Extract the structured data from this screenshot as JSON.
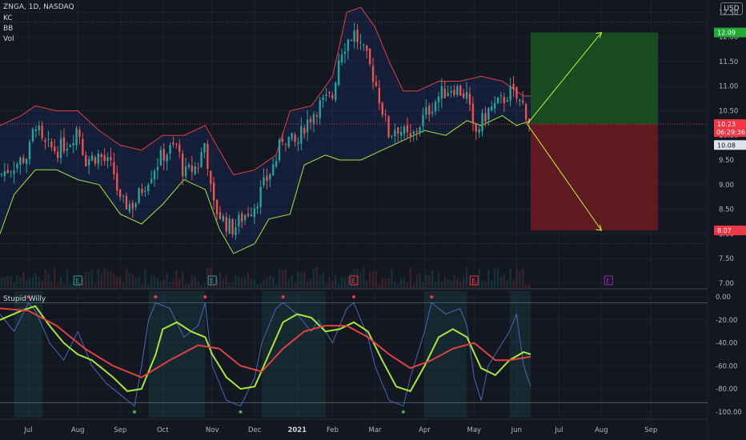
{
  "header": {
    "symbol_line": "ZNGA, 1D, NASDAQ",
    "indicators": [
      "KC",
      "BB",
      "Vol"
    ],
    "currency_button": "USD"
  },
  "oscillator": {
    "title": "Stupid Willy"
  },
  "colors": {
    "background": "#131722",
    "up_candle": "#26a69a",
    "down_candle": "#ef5350",
    "bb_upper": "#e0413f",
    "bb_lower": "#a8e63a",
    "target_zone": "#1b5e20",
    "stop_zone": "#7a1c23",
    "price_label": "#f23645",
    "target_label": "#22ab35"
  },
  "chart_data": [
    {
      "type": "candlestick",
      "symbol": "ZNGA",
      "interval": "1D",
      "exchange": "NASDAQ",
      "ylim": [
        6.9,
        12.75
      ],
      "y_ticks": [
        "12.50",
        "12.00",
        "11.50",
        "11.00",
        "10.50",
        "10.00",
        "9.50",
        "9.00",
        "8.50",
        "8.00",
        "7.50",
        "7.00"
      ],
      "x_ticks": [
        "Jul",
        "Aug",
        "Sep",
        "Oct",
        "Nov",
        "Dec",
        "2021",
        "Feb",
        "Mar",
        "Apr",
        "May",
        "Jun",
        "Jul",
        "Aug",
        "Sep"
      ],
      "x_tick_pos": [
        0.04,
        0.11,
        0.17,
        0.23,
        0.3,
        0.36,
        0.42,
        0.47,
        0.53,
        0.6,
        0.67,
        0.73,
        0.79,
        0.85,
        0.92
      ],
      "close_path": [
        [
          0.0,
          9.2
        ],
        [
          0.02,
          9.4
        ],
        [
          0.04,
          9.6
        ],
        [
          0.05,
          10.3
        ],
        [
          0.06,
          9.8
        ],
        [
          0.08,
          9.7
        ],
        [
          0.1,
          9.9
        ],
        [
          0.11,
          10.2
        ],
        [
          0.12,
          9.5
        ],
        [
          0.14,
          9.6
        ],
        [
          0.16,
          9.3
        ],
        [
          0.17,
          8.6
        ],
        [
          0.19,
          8.6
        ],
        [
          0.2,
          8.9
        ],
        [
          0.22,
          9.4
        ],
        [
          0.23,
          9.6
        ],
        [
          0.25,
          9.8
        ],
        [
          0.26,
          9.2
        ],
        [
          0.28,
          9.4
        ],
        [
          0.29,
          9.9
        ],
        [
          0.3,
          8.6
        ],
        [
          0.32,
          8.2
        ],
        [
          0.33,
          8.1
        ],
        [
          0.34,
          8.3
        ],
        [
          0.36,
          8.6
        ],
        [
          0.37,
          8.9
        ],
        [
          0.39,
          9.5
        ],
        [
          0.4,
          10.0
        ],
        [
          0.42,
          9.8
        ],
        [
          0.43,
          10.2
        ],
        [
          0.45,
          10.6
        ],
        [
          0.47,
          10.8
        ],
        [
          0.48,
          11.7
        ],
        [
          0.5,
          12.1
        ],
        [
          0.52,
          11.5
        ],
        [
          0.53,
          11.1
        ],
        [
          0.55,
          10.0
        ],
        [
          0.56,
          10.2
        ],
        [
          0.58,
          9.9
        ],
        [
          0.6,
          10.4
        ],
        [
          0.62,
          10.8
        ],
        [
          0.64,
          11.0
        ],
        [
          0.66,
          10.8
        ],
        [
          0.67,
          10.0
        ],
        [
          0.69,
          10.5
        ],
        [
          0.71,
          10.7
        ],
        [
          0.72,
          10.9
        ],
        [
          0.74,
          10.6
        ],
        [
          0.75,
          10.23
        ]
      ],
      "bb_upper": [
        [
          0.0,
          10.2
        ],
        [
          0.03,
          10.4
        ],
        [
          0.05,
          10.6
        ],
        [
          0.08,
          10.5
        ],
        [
          0.11,
          10.5
        ],
        [
          0.14,
          10.1
        ],
        [
          0.17,
          9.8
        ],
        [
          0.2,
          9.7
        ],
        [
          0.23,
          10.0
        ],
        [
          0.26,
          10.0
        ],
        [
          0.29,
          10.2
        ],
        [
          0.31,
          9.7
        ],
        [
          0.33,
          9.2
        ],
        [
          0.36,
          9.3
        ],
        [
          0.39,
          9.6
        ],
        [
          0.41,
          10.5
        ],
        [
          0.44,
          10.6
        ],
        [
          0.47,
          11.2
        ],
        [
          0.49,
          12.5
        ],
        [
          0.51,
          12.6
        ],
        [
          0.53,
          12.2
        ],
        [
          0.55,
          11.5
        ],
        [
          0.57,
          10.9
        ],
        [
          0.59,
          10.9
        ],
        [
          0.62,
          11.1
        ],
        [
          0.65,
          11.1
        ],
        [
          0.68,
          11.2
        ],
        [
          0.71,
          11.1
        ],
        [
          0.74,
          10.8
        ],
        [
          0.75,
          10.8
        ]
      ],
      "bb_lower": [
        [
          0.0,
          8.0
        ],
        [
          0.02,
          8.8
        ],
        [
          0.05,
          9.3
        ],
        [
          0.08,
          9.3
        ],
        [
          0.11,
          9.1
        ],
        [
          0.14,
          9.0
        ],
        [
          0.17,
          8.4
        ],
        [
          0.2,
          8.2
        ],
        [
          0.23,
          8.6
        ],
        [
          0.26,
          9.1
        ],
        [
          0.29,
          8.9
        ],
        [
          0.31,
          8.1
        ],
        [
          0.33,
          7.6
        ],
        [
          0.36,
          7.8
        ],
        [
          0.38,
          8.3
        ],
        [
          0.41,
          8.4
        ],
        [
          0.43,
          9.4
        ],
        [
          0.46,
          9.6
        ],
        [
          0.48,
          9.5
        ],
        [
          0.51,
          9.5
        ],
        [
          0.54,
          9.7
        ],
        [
          0.57,
          9.9
        ],
        [
          0.6,
          10.1
        ],
        [
          0.63,
          10.0
        ],
        [
          0.66,
          10.3
        ],
        [
          0.68,
          10.2
        ],
        [
          0.71,
          10.4
        ],
        [
          0.73,
          10.2
        ],
        [
          0.75,
          10.3
        ]
      ],
      "earnings_markers": [
        {
          "label": "E",
          "x": 0.11,
          "status": "past"
        },
        {
          "label": "E",
          "x": 0.3,
          "status": "past"
        },
        {
          "label": "E",
          "x": 0.5,
          "status": "past"
        },
        {
          "label": "E",
          "x": 0.67,
          "status": "past"
        },
        {
          "label": "E",
          "x": 0.86,
          "status": "upcoming"
        }
      ],
      "position": {
        "entry": 10.23,
        "target": 12.09,
        "stop": 8.07,
        "start_x": 0.75,
        "end_x": 0.93
      },
      "price_labels": [
        {
          "value": "12.09",
          "role": "target"
        },
        {
          "value": "10.23",
          "role": "last_price",
          "countdown": "06:29:36"
        },
        {
          "value": "10.08",
          "role": "reference"
        },
        {
          "value": "8.07",
          "role": "stop"
        }
      ]
    },
    {
      "type": "line",
      "title": "Stupid Willy",
      "ylim": [
        -105,
        5
      ],
      "y_ticks": [
        "0.00",
        "-20.00",
        "-40.00",
        "-60.00",
        "-80.00",
        "-100.00"
      ],
      "levels": [
        -5,
        -92
      ],
      "series": [
        {
          "color": "#4a67b5",
          "values": [
            [
              0.0,
              -15
            ],
            [
              0.02,
              -30
            ],
            [
              0.04,
              -5
            ],
            [
              0.05,
              -12
            ],
            [
              0.07,
              -40
            ],
            [
              0.09,
              -55
            ],
            [
              0.11,
              -30
            ],
            [
              0.13,
              -60
            ],
            [
              0.15,
              -75
            ],
            [
              0.17,
              -85
            ],
            [
              0.19,
              -95
            ],
            [
              0.2,
              -60
            ],
            [
              0.21,
              -20
            ],
            [
              0.22,
              -5
            ],
            [
              0.24,
              -10
            ],
            [
              0.26,
              -35
            ],
            [
              0.28,
              -25
            ],
            [
              0.29,
              -5
            ],
            [
              0.3,
              -60
            ],
            [
              0.32,
              -90
            ],
            [
              0.34,
              -95
            ],
            [
              0.36,
              -70
            ],
            [
              0.37,
              -40
            ],
            [
              0.39,
              -10
            ],
            [
              0.4,
              -5
            ],
            [
              0.42,
              -15
            ],
            [
              0.44,
              -30
            ],
            [
              0.45,
              -20
            ],
            [
              0.47,
              -40
            ],
            [
              0.49,
              -10
            ],
            [
              0.5,
              -5
            ],
            [
              0.52,
              -35
            ],
            [
              0.53,
              -60
            ],
            [
              0.55,
              -90
            ],
            [
              0.57,
              -95
            ],
            [
              0.58,
              -70
            ],
            [
              0.6,
              -30
            ],
            [
              0.61,
              -5
            ],
            [
              0.63,
              -15
            ],
            [
              0.65,
              -10
            ],
            [
              0.66,
              -25
            ],
            [
              0.67,
              -70
            ],
            [
              0.68,
              -90
            ],
            [
              0.69,
              -60
            ],
            [
              0.7,
              -50
            ],
            [
              0.72,
              -30
            ],
            [
              0.73,
              -15
            ],
            [
              0.74,
              -60
            ],
            [
              0.75,
              -78
            ]
          ]
        },
        {
          "color": "#a8e63a",
          "values": [
            [
              0.0,
              -20
            ],
            [
              0.03,
              -12
            ],
            [
              0.05,
              -8
            ],
            [
              0.07,
              -25
            ],
            [
              0.09,
              -40
            ],
            [
              0.11,
              -50
            ],
            [
              0.13,
              -55
            ],
            [
              0.16,
              -70
            ],
            [
              0.18,
              -82
            ],
            [
              0.2,
              -80
            ],
            [
              0.22,
              -50
            ],
            [
              0.23,
              -28
            ],
            [
              0.25,
              -22
            ],
            [
              0.27,
              -30
            ],
            [
              0.29,
              -35
            ],
            [
              0.3,
              -50
            ],
            [
              0.32,
              -70
            ],
            [
              0.34,
              -80
            ],
            [
              0.36,
              -78
            ],
            [
              0.38,
              -50
            ],
            [
              0.4,
              -22
            ],
            [
              0.42,
              -15
            ],
            [
              0.44,
              -18
            ],
            [
              0.46,
              -30
            ],
            [
              0.48,
              -28
            ],
            [
              0.5,
              -22
            ],
            [
              0.52,
              -30
            ],
            [
              0.54,
              -55
            ],
            [
              0.56,
              -78
            ],
            [
              0.58,
              -82
            ],
            [
              0.6,
              -60
            ],
            [
              0.62,
              -35
            ],
            [
              0.64,
              -28
            ],
            [
              0.66,
              -35
            ],
            [
              0.68,
              -62
            ],
            [
              0.7,
              -68
            ],
            [
              0.72,
              -55
            ],
            [
              0.74,
              -48
            ],
            [
              0.75,
              -50
            ]
          ]
        },
        {
          "color": "#e0413f",
          "values": [
            [
              0.0,
              -10
            ],
            [
              0.04,
              -12
            ],
            [
              0.08,
              -25
            ],
            [
              0.12,
              -45
            ],
            [
              0.16,
              -60
            ],
            [
              0.2,
              -70
            ],
            [
              0.24,
              -55
            ],
            [
              0.28,
              -42
            ],
            [
              0.31,
              -45
            ],
            [
              0.34,
              -60
            ],
            [
              0.37,
              -65
            ],
            [
              0.4,
              -45
            ],
            [
              0.43,
              -30
            ],
            [
              0.46,
              -25
            ],
            [
              0.49,
              -25
            ],
            [
              0.52,
              -35
            ],
            [
              0.55,
              -50
            ],
            [
              0.58,
              -62
            ],
            [
              0.61,
              -55
            ],
            [
              0.64,
              -45
            ],
            [
              0.67,
              -40
            ],
            [
              0.7,
              -55
            ],
            [
              0.72,
              -55
            ],
            [
              0.75,
              -52
            ]
          ]
        }
      ],
      "shaded_regions": [
        [
          0.02,
          0.06
        ],
        [
          0.21,
          0.29
        ],
        [
          0.37,
          0.46
        ],
        [
          0.6,
          0.66
        ],
        [
          0.72,
          0.75
        ]
      ]
    }
  ]
}
